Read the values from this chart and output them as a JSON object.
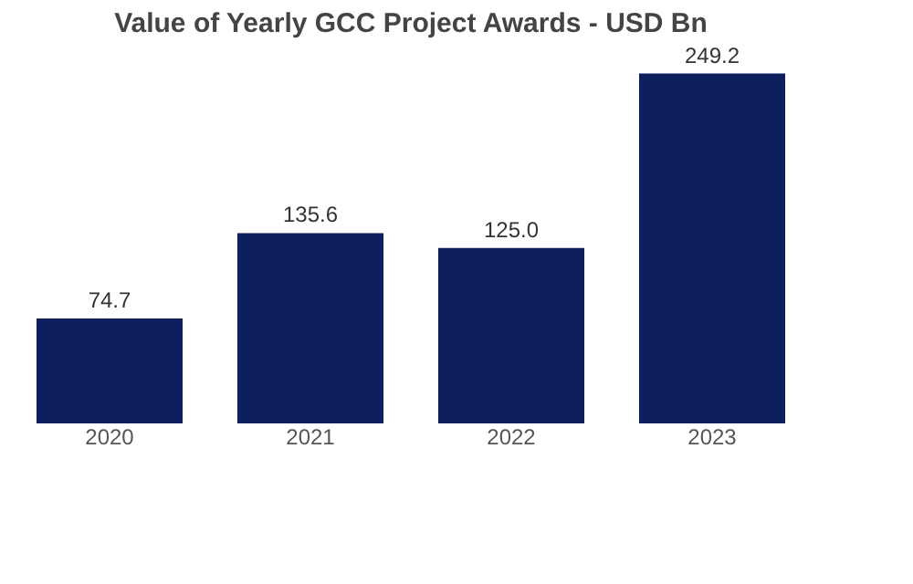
{
  "chart_data": {
    "type": "bar",
    "title": "Value of Yearly GCC Project Awards  - USD Bn",
    "categories": [
      "2020",
      "2021",
      "2022",
      "2023"
    ],
    "values": [
      74.7,
      135.6,
      125.0,
      249.2
    ],
    "value_labels": [
      "74.7",
      "135.6",
      "125.0",
      "249.2"
    ],
    "color": "#0d1f5c"
  }
}
